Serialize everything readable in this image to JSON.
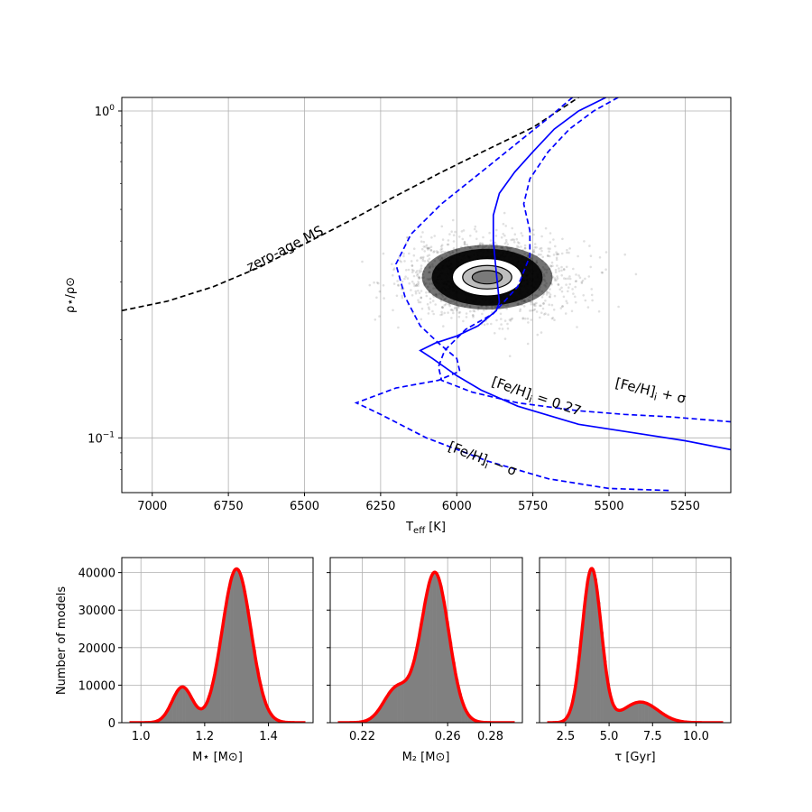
{
  "chart_data": [
    {
      "type": "line",
      "panel": "main",
      "xlabel_base": "T",
      "xlabel_sub": "eff",
      "xlabel_unit": "[K]",
      "ylabel": "ρ⋆/ρ⊙",
      "x_reversed": true,
      "xlim": [
        7100,
        5100
      ],
      "y_log": true,
      "ylim": [
        0.068,
        1.1
      ],
      "grid": true,
      "x_ticks": [
        7000,
        6750,
        6500,
        6250,
        6000,
        5750,
        5500,
        5250
      ],
      "y_ticks": [
        {
          "value": 1.0,
          "base": "10",
          "exp": "0"
        },
        {
          "value": 0.1,
          "base": "10",
          "exp": "−1"
        }
      ],
      "series": [
        {
          "key": "zams",
          "color": "#000000",
          "dash": "dashed",
          "x": [
            7100,
            6950,
            6800,
            6650,
            6500,
            6350,
            6200,
            6050,
            5900,
            5750,
            5600
          ],
          "y": [
            0.245,
            0.262,
            0.29,
            0.332,
            0.392,
            0.462,
            0.55,
            0.65,
            0.762,
            0.89,
            1.1
          ]
        },
        {
          "key": "feh_mid",
          "color": "#0000ff",
          "dash": "solid",
          "x": [
            5510,
            5600,
            5680,
            5750,
            5810,
            5860,
            5880,
            5880,
            5870,
            5860,
            5870,
            5930,
            6000,
            6070,
            6120,
            6080,
            6000,
            5920,
            5800,
            5600,
            5400,
            5250,
            5100
          ],
          "y": [
            1.1,
            1.0,
            0.88,
            0.75,
            0.65,
            0.56,
            0.48,
            0.4,
            0.32,
            0.26,
            0.245,
            0.22,
            0.205,
            0.195,
            0.185,
            0.175,
            0.155,
            0.14,
            0.125,
            0.11,
            0.103,
            0.098,
            0.092
          ]
        },
        {
          "key": "feh_plus",
          "color": "#0000ff",
          "dash": "dashed",
          "x": [
            5470,
            5550,
            5630,
            5700,
            5760,
            5780,
            5760,
            5760,
            5800,
            5880,
            5970,
            6040,
            6060,
            6050,
            5950,
            5800,
            5600,
            5450,
            5300,
            5100
          ],
          "y": [
            1.1,
            1.0,
            0.88,
            0.75,
            0.62,
            0.52,
            0.43,
            0.36,
            0.29,
            0.24,
            0.215,
            0.185,
            0.165,
            0.15,
            0.138,
            0.128,
            0.121,
            0.118,
            0.116,
            0.112
          ]
        },
        {
          "key": "feh_minus",
          "color": "#0000ff",
          "dash": "dashed",
          "x": [
            5620,
            5700,
            5800,
            5920,
            6050,
            6150,
            6200,
            6170,
            6120,
            6060,
            6000,
            5990,
            6060,
            6200,
            6330,
            6250,
            6100,
            5900,
            5700,
            5500,
            5300
          ],
          "y": [
            1.1,
            0.95,
            0.8,
            0.65,
            0.52,
            0.42,
            0.34,
            0.27,
            0.22,
            0.195,
            0.175,
            0.16,
            0.15,
            0.142,
            0.128,
            0.118,
            0.1,
            0.085,
            0.075,
            0.07,
            0.069
          ]
        }
      ],
      "posterior_cloud": {
        "center_teff": 5900,
        "center_rho": 0.31,
        "sigma_teff": 130,
        "sigma_log_rho": 0.06
      },
      "annotations": [
        {
          "key": "zams",
          "text": "zero-age MS"
        },
        {
          "key": "feh_mid",
          "text_parts": [
            "[Fe/H]",
            "i",
            " = 0.27"
          ]
        },
        {
          "key": "feh_plus",
          "text_parts": [
            "[Fe/H]",
            "i",
            " + σ"
          ]
        },
        {
          "key": "feh_minus",
          "text_parts": [
            "[Fe/H]",
            "i",
            " − σ"
          ]
        }
      ]
    },
    {
      "type": "bar",
      "panel": "hist_mass",
      "xlabel": "M⋆ [M⊙]",
      "ylabel": "Number of models",
      "xlim": [
        0.94,
        1.54
      ],
      "ylim": [
        0,
        44000
      ],
      "x_ticks": [
        "1.0",
        "1.2",
        "1.4"
      ],
      "y_ticks": [
        "0",
        "10000",
        "20000",
        "30000",
        "40000"
      ],
      "components": [
        {
          "mu": 1.13,
          "sigma": 0.032,
          "amp": 9500
        },
        {
          "mu": 1.3,
          "sigma": 0.045,
          "amp": 41000
        }
      ],
      "kde_color": "#ff0000",
      "bar_color": "#808080"
    },
    {
      "type": "bar",
      "panel": "hist_m2",
      "xlabel": "M₂ [M⊙]",
      "xlim": [
        0.205,
        0.295
      ],
      "ylim": [
        0,
        44000
      ],
      "x_ticks": [
        "0.22",
        "0.26",
        "0.28"
      ],
      "components": [
        {
          "mu": 0.236,
          "sigma": 0.006,
          "amp": 9000
        },
        {
          "mu": 0.254,
          "sigma": 0.0065,
          "amp": 40000
        }
      ],
      "kde_color": "#ff0000",
      "bar_color": "#808080"
    },
    {
      "type": "bar",
      "panel": "hist_age",
      "xlabel": "τ [Gyr]",
      "xlim": [
        1.0,
        12.0
      ],
      "ylim": [
        0,
        44000
      ],
      "x_ticks": [
        "2.5",
        "5.0",
        "7.5",
        "10.0"
      ],
      "components": [
        {
          "mu": 4.0,
          "sigma": 0.55,
          "amp": 41000
        },
        {
          "mu": 6.8,
          "sigma": 1.0,
          "amp": 5500
        }
      ],
      "kde_color": "#ff0000",
      "bar_color": "#808080"
    }
  ]
}
